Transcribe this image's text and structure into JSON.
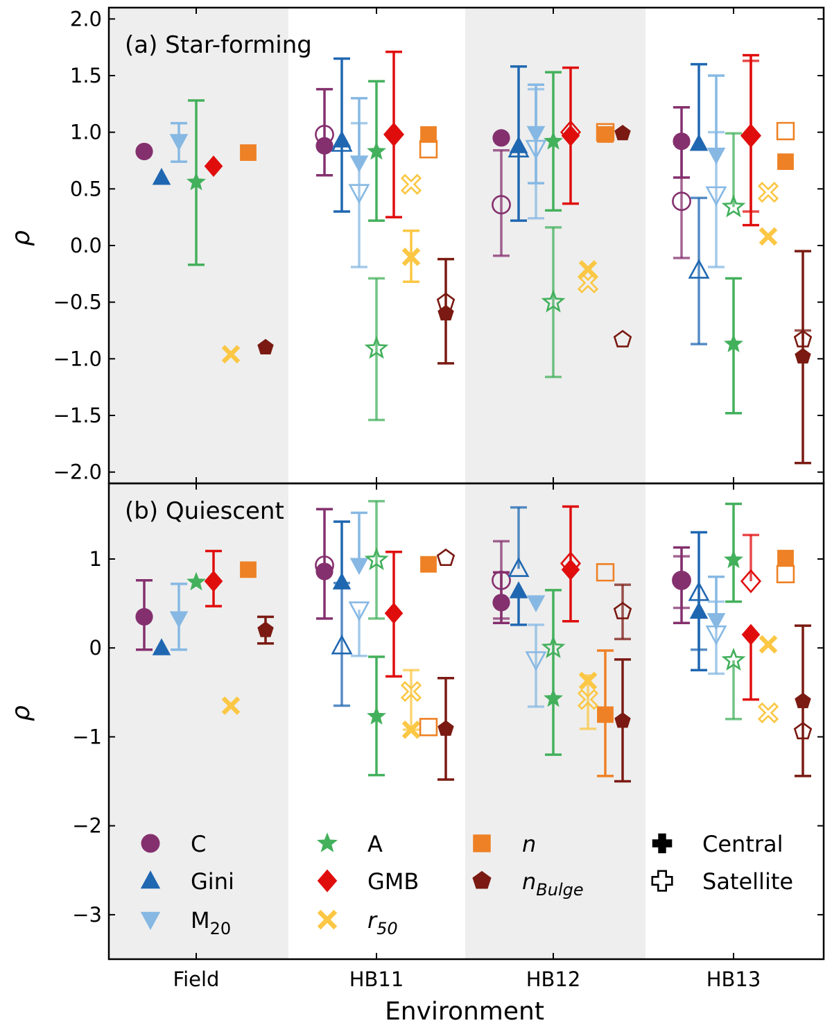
{
  "chart_data": [
    {
      "type": "scatter",
      "panel": "a",
      "title": "(a) Star-forming",
      "xlabel": "",
      "ylabel": "ρ",
      "ylim": [
        -2.1,
        2.1
      ],
      "yticks": [
        -2.0,
        -1.5,
        -1.0,
        -0.5,
        0.0,
        0.5,
        1.0,
        1.5,
        2.0
      ],
      "ytick_labels": [
        "−2.0",
        "−1.5",
        "−1.0",
        "−0.5",
        "0.0",
        "0.5",
        "1.0",
        "1.5",
        "2.0"
      ],
      "categories": [
        "Field",
        "HB11",
        "HB12",
        "HB13"
      ],
      "shaded_categories": [
        "Field",
        "HB12"
      ],
      "series": [
        {
          "name": "C",
          "central": [
            {
              "env": "Field",
              "y": 0.83,
              "lo": null,
              "hi": null
            },
            {
              "env": "HB11",
              "y": 0.88,
              "lo": 0.62,
              "hi": 1.38
            },
            {
              "env": "HB12",
              "y": 0.95,
              "lo": null,
              "hi": null
            },
            {
              "env": "HB13",
              "y": 0.92,
              "lo": 0.6,
              "hi": 1.22
            }
          ],
          "satellite": [
            {
              "env": "HB11",
              "y": 0.98,
              "lo": null,
              "hi": null
            },
            {
              "env": "HB12",
              "y": 0.36,
              "lo": -0.09,
              "hi": 0.84
            },
            {
              "env": "HB13",
              "y": 0.39,
              "lo": -0.11,
              "hi": 0.9
            }
          ]
        },
        {
          "name": "Gini",
          "central": [
            {
              "env": "Field",
              "y": 0.6,
              "lo": null,
              "hi": null
            },
            {
              "env": "HB11",
              "y": 0.93,
              "lo": 0.3,
              "hi": 1.65
            },
            {
              "env": "HB12",
              "y": 0.88,
              "lo": 0.22,
              "hi": 1.58
            },
            {
              "env": "HB13",
              "y": 0.9,
              "lo": null,
              "hi": 1.6
            }
          ],
          "satellite": [
            {
              "env": "HB11",
              "y": 0.9,
              "lo": null,
              "hi": null
            },
            {
              "env": "HB12",
              "y": 0.85,
              "lo": null,
              "hi": null
            },
            {
              "env": "HB13",
              "y": -0.22,
              "lo": -0.87,
              "hi": 0.42
            }
          ]
        },
        {
          "name": "M₂₀",
          "central": [
            {
              "env": "Field",
              "y": 0.92,
              "lo": 0.74,
              "hi": 1.08
            },
            {
              "env": "HB11",
              "y": 0.73,
              "lo": null,
              "hi": 1.3
            },
            {
              "env": "HB12",
              "y": 0.99,
              "lo": 0.55,
              "hi": 1.42
            },
            {
              "env": "HB13",
              "y": 0.8,
              "lo": null,
              "hi": 1.5
            }
          ],
          "satellite": [
            {
              "env": "HB11",
              "y": 0.47,
              "lo": -0.19,
              "hi": 1.08
            },
            {
              "env": "HB12",
              "y": 0.86,
              "lo": 0.24,
              "hi": 1.38
            },
            {
              "env": "HB13",
              "y": 0.45,
              "lo": -0.19,
              "hi": 1.0
            }
          ]
        },
        {
          "name": "A",
          "central": [
            {
              "env": "Field",
              "y": 0.56,
              "lo": -0.17,
              "hi": 1.28
            },
            {
              "env": "HB11",
              "y": 0.83,
              "lo": 0.22,
              "hi": 1.45
            },
            {
              "env": "HB12",
              "y": 0.92,
              "lo": 0.31,
              "hi": 1.53
            },
            {
              "env": "HB13",
              "y": -0.87,
              "lo": -1.48,
              "hi": -0.29
            }
          ],
          "satellite": [
            {
              "env": "HB11",
              "y": -0.91,
              "lo": -1.54,
              "hi": -0.29
            },
            {
              "env": "HB12",
              "y": -0.5,
              "lo": -1.16,
              "hi": 0.16
            },
            {
              "env": "HB13",
              "y": 0.34,
              "lo": null,
              "hi": 0.99
            }
          ]
        },
        {
          "name": "GMB",
          "central": [
            {
              "env": "Field",
              "y": 0.7,
              "lo": null,
              "hi": null
            },
            {
              "env": "HB11",
              "y": 0.98,
              "lo": 0.25,
              "hi": 1.71
            },
            {
              "env": "HB12",
              "y": 0.97,
              "lo": 0.37,
              "hi": 1.57
            },
            {
              "env": "HB13",
              "y": 0.96,
              "lo": 0.18,
              "hi": 1.68
            }
          ],
          "satellite": [
            {
              "env": "HB11",
              "y": 0.98,
              "lo": null,
              "hi": null
            },
            {
              "env": "HB12",
              "y": 1.0,
              "lo": null,
              "hi": null
            },
            {
              "env": "HB13",
              "y": 0.97,
              "lo": 0.3,
              "hi": 1.63
            }
          ]
        },
        {
          "name": "r₅₀",
          "central": [
            {
              "env": "Field",
              "y": -0.96,
              "lo": null,
              "hi": null
            },
            {
              "env": "HB11",
              "y": -0.1,
              "lo": -0.32,
              "hi": 0.13
            },
            {
              "env": "HB12",
              "y": -0.21,
              "lo": null,
              "hi": null
            },
            {
              "env": "HB13",
              "y": 0.08,
              "lo": null,
              "hi": null
            }
          ],
          "satellite": [
            {
              "env": "HB11",
              "y": 0.54,
              "lo": null,
              "hi": null
            },
            {
              "env": "HB12",
              "y": -0.33,
              "lo": null,
              "hi": null
            },
            {
              "env": "HB13",
              "y": 0.47,
              "lo": null,
              "hi": null
            }
          ]
        },
        {
          "name": "n",
          "central": [
            {
              "env": "Field",
              "y": 0.82,
              "lo": null,
              "hi": null
            },
            {
              "env": "HB11",
              "y": 0.98,
              "lo": null,
              "hi": null
            },
            {
              "env": "HB12",
              "y": 0.98,
              "lo": null,
              "hi": null
            },
            {
              "env": "HB13",
              "y": 0.74,
              "lo": null,
              "hi": null
            }
          ],
          "satellite": [
            {
              "env": "HB11",
              "y": 0.85,
              "lo": null,
              "hi": null
            },
            {
              "env": "HB12",
              "y": 1.0,
              "lo": null,
              "hi": null
            },
            {
              "env": "HB13",
              "y": 1.01,
              "lo": null,
              "hi": null
            }
          ]
        },
        {
          "name": "nBulge",
          "central": [
            {
              "env": "Field",
              "y": -0.9,
              "lo": null,
              "hi": null
            },
            {
              "env": "HB11",
              "y": -0.6,
              "lo": -1.04,
              "hi": -0.12
            },
            {
              "env": "HB12",
              "y": 0.99,
              "lo": null,
              "hi": null
            },
            {
              "env": "HB13",
              "y": -0.98,
              "lo": -1.92,
              "hi": -0.05
            }
          ],
          "satellite": [
            {
              "env": "HB11",
              "y": -0.5,
              "lo": null,
              "hi": null
            },
            {
              "env": "HB12",
              "y": -0.83,
              "lo": null,
              "hi": null
            },
            {
              "env": "HB13",
              "y": -0.83,
              "lo": null,
              "hi": -0.75
            }
          ]
        }
      ]
    },
    {
      "type": "scatter",
      "panel": "b",
      "title": "(b) Quiescent",
      "xlabel": "Environment",
      "ylabel": "ρ",
      "ylim": [
        -3.5,
        1.85
      ],
      "yticks": [
        -3,
        -2,
        -1,
        0,
        1
      ],
      "ytick_labels": [
        "−3",
        "−2",
        "−1",
        "0",
        "1"
      ],
      "categories": [
        "Field",
        "HB11",
        "HB12",
        "HB13"
      ],
      "shaded_categories": [
        "Field",
        "HB12"
      ],
      "series": [
        {
          "name": "C",
          "central": [
            {
              "env": "Field",
              "y": 0.35,
              "lo": -0.02,
              "hi": 0.76
            },
            {
              "env": "HB11",
              "y": 0.86,
              "lo": 0.33,
              "hi": 1.56
            },
            {
              "env": "HB12",
              "y": 0.51,
              "lo": 0.28,
              "hi": 0.85
            },
            {
              "env": "HB13",
              "y": 0.75,
              "lo": 0.28,
              "hi": 1.13
            }
          ],
          "satellite": [
            {
              "env": "HB11",
              "y": 0.93,
              "lo": null,
              "hi": null
            },
            {
              "env": "HB12",
              "y": 0.76,
              "lo": 0.33,
              "hi": 1.2
            },
            {
              "env": "HB13",
              "y": 0.76,
              "lo": 0.45,
              "hi": 1.03
            }
          ]
        },
        {
          "name": "Gini",
          "central": [
            {
              "env": "Field",
              "y": 0.0,
              "lo": null,
              "hi": null
            },
            {
              "env": "HB11",
              "y": 0.74,
              "lo": null,
              "hi": 1.42
            },
            {
              "env": "HB12",
              "y": 0.64,
              "lo": 0.26,
              "hi": null
            },
            {
              "env": "HB13",
              "y": 0.41,
              "lo": -0.25,
              "hi": 1.3
            }
          ],
          "satellite": [
            {
              "env": "HB11",
              "y": 0.02,
              "lo": -0.65,
              "hi": 0.73
            },
            {
              "env": "HB12",
              "y": 0.89,
              "lo": null,
              "hi": 1.58
            },
            {
              "env": "HB13",
              "y": 0.62,
              "lo": -0.02,
              "hi": null
            }
          ]
        },
        {
          "name": "M₂₀",
          "central": [
            {
              "env": "Field",
              "y": 0.33,
              "lo": -0.02,
              "hi": 0.72
            },
            {
              "env": "HB11",
              "y": 0.93,
              "lo": null,
              "hi": 1.52
            },
            {
              "env": "HB12",
              "y": 0.51,
              "lo": null,
              "hi": null
            },
            {
              "env": "HB13",
              "y": 0.31,
              "lo": null,
              "hi": 0.8
            }
          ],
          "satellite": [
            {
              "env": "HB11",
              "y": 0.43,
              "lo": -0.09,
              "hi": null
            },
            {
              "env": "HB12",
              "y": -0.13,
              "lo": -0.66,
              "hi": 0.26
            },
            {
              "env": "HB13",
              "y": 0.16,
              "lo": -0.29,
              "hi": 0.52
            }
          ]
        },
        {
          "name": "A",
          "central": [
            {
              "env": "Field",
              "y": 0.74,
              "lo": null,
              "hi": null
            },
            {
              "env": "HB11",
              "y": -0.77,
              "lo": -1.43,
              "hi": -0.1
            },
            {
              "env": "HB12",
              "y": -0.57,
              "lo": -1.2,
              "hi": 0.65
            },
            {
              "env": "HB13",
              "y": 0.99,
              "lo": 0.52,
              "hi": 1.62
            }
          ],
          "satellite": [
            {
              "env": "HB11",
              "y": 0.99,
              "lo": 0.33,
              "hi": 1.65
            },
            {
              "env": "HB12",
              "y": 0.0,
              "lo": null,
              "hi": null
            },
            {
              "env": "HB13",
              "y": -0.14,
              "lo": -0.8,
              "hi": null
            }
          ]
        },
        {
          "name": "GMB",
          "central": [
            {
              "env": "Field",
              "y": 0.75,
              "lo": 0.47,
              "hi": 1.09
            },
            {
              "env": "HB11",
              "y": 0.39,
              "lo": -0.32,
              "hi": 1.08
            },
            {
              "env": "HB12",
              "y": 0.88,
              "lo": 0.3,
              "hi": 1.59
            },
            {
              "env": "HB13",
              "y": 0.15,
              "lo": -0.58,
              "hi": null
            }
          ],
          "satellite": [
            {
              "env": "HB11",
              "y": null,
              "lo": null,
              "hi": null
            },
            {
              "env": "HB12",
              "y": 0.95,
              "lo": null,
              "hi": null
            },
            {
              "env": "HB13",
              "y": 0.75,
              "lo": null,
              "hi": 1.27
            }
          ]
        },
        {
          "name": "r₅₀",
          "central": [
            {
              "env": "Field",
              "y": -0.65,
              "lo": null,
              "hi": null
            },
            {
              "env": "HB11",
              "y": -0.92,
              "lo": null,
              "hi": null
            },
            {
              "env": "HB12",
              "y": -0.37,
              "lo": null,
              "hi": null
            },
            {
              "env": "HB13",
              "y": 0.04,
              "lo": null,
              "hi": null
            }
          ],
          "satellite": [
            {
              "env": "HB11",
              "y": -0.49,
              "lo": -0.92,
              "hi": -0.25
            },
            {
              "env": "HB12",
              "y": -0.58,
              "lo": -0.91,
              "hi": -0.31
            },
            {
              "env": "HB13",
              "y": -0.73,
              "lo": null,
              "hi": null
            }
          ]
        },
        {
          "name": "n",
          "central": [
            {
              "env": "Field",
              "y": 0.88,
              "lo": null,
              "hi": null
            },
            {
              "env": "HB11",
              "y": 0.94,
              "lo": null,
              "hi": null
            },
            {
              "env": "HB12",
              "y": -0.75,
              "lo": -1.44,
              "hi": -0.03
            },
            {
              "env": "HB13",
              "y": 1.01,
              "lo": null,
              "hi": null
            }
          ],
          "satellite": [
            {
              "env": "HB11",
              "y": -0.89,
              "lo": null,
              "hi": null
            },
            {
              "env": "HB12",
              "y": 0.85,
              "lo": null,
              "hi": null
            },
            {
              "env": "HB13",
              "y": 0.83,
              "lo": null,
              "hi": null
            }
          ]
        },
        {
          "name": "nBulge",
          "central": [
            {
              "env": "Field",
              "y": 0.2,
              "lo": 0.05,
              "hi": 0.35
            },
            {
              "env": "HB11",
              "y": -0.91,
              "lo": -1.48,
              "hi": -0.34
            },
            {
              "env": "HB12",
              "y": -0.82,
              "lo": -1.5,
              "hi": -0.13
            },
            {
              "env": "HB13",
              "y": -0.6,
              "lo": -1.44,
              "hi": 0.25
            }
          ],
          "satellite": [
            {
              "env": "HB11",
              "y": 1.01,
              "lo": null,
              "hi": null
            },
            {
              "env": "HB12",
              "y": 0.41,
              "lo": 0.1,
              "hi": 0.71
            },
            {
              "env": "HB13",
              "y": -0.94,
              "lo": null,
              "hi": null
            }
          ]
        }
      ]
    }
  ],
  "legend": {
    "location": "lower-center",
    "entries": [
      {
        "label": "C",
        "marker": "circle",
        "color": "#84306e"
      },
      {
        "label": "Gini",
        "marker": "triangle-up",
        "color": "#1f67b1"
      },
      {
        "label": "M",
        "sub": "20",
        "marker": "triangle-down",
        "color": "#86b8e3"
      },
      {
        "label": "A",
        "marker": "star",
        "color": "#43b05c"
      },
      {
        "label": "GMB",
        "marker": "diamond",
        "color": "#e00d0d"
      },
      {
        "label": "r",
        "sub": "50",
        "italic": true,
        "marker": "cross-x",
        "color": "#fbc744"
      },
      {
        "label": "n",
        "italic": true,
        "marker": "square",
        "color": "#ee8125"
      },
      {
        "label": "n",
        "sub": "Bulge",
        "italic": true,
        "marker": "pentagon",
        "color": "#7a1a12"
      },
      {
        "label": "Central",
        "marker": "plus-filled",
        "color": "#000000"
      },
      {
        "label": "Satellite",
        "marker": "plus-open",
        "color": "#000000"
      }
    ]
  },
  "colors": {
    "C": "#84306e",
    "Gini": "#1f67b1",
    "M20": "#86b8e3",
    "A": "#43b05c",
    "GMB": "#e00d0d",
    "r50": "#fbc744",
    "n": "#ee8125",
    "nBulge": "#7a1a12",
    "shade": "#eeeeee"
  }
}
